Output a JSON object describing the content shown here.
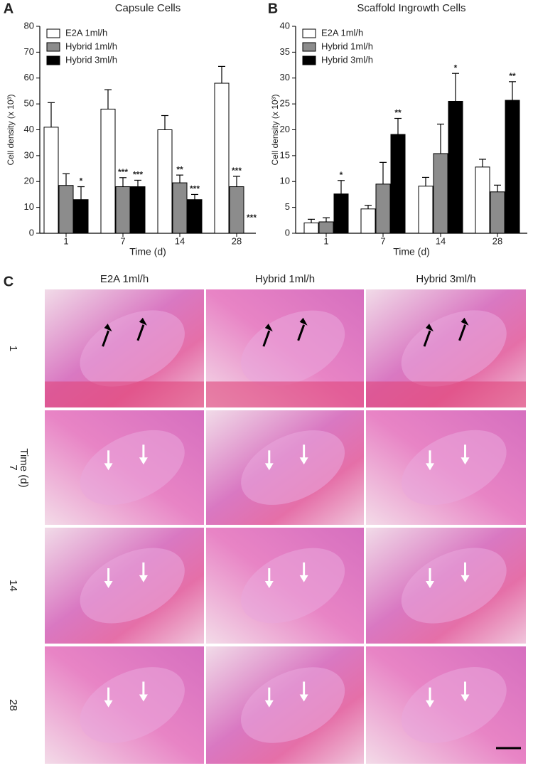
{
  "chart_data": [
    {
      "type": "bar",
      "panel": "A",
      "title": "Capsule Cells",
      "x_label": "Time (d)",
      "y_label": "Cell density (x 10³)",
      "categories": [
        "1",
        "7",
        "14",
        "28"
      ],
      "series": [
        {
          "name": "E2A 1ml/h",
          "color": "#ffffff",
          "values": [
            41,
            48,
            40,
            58
          ],
          "errors": [
            9.5,
            7.5,
            5.5,
            6.5
          ],
          "annotations": [
            null,
            null,
            null,
            null
          ]
        },
        {
          "name": "Hybrid 1ml/h",
          "color": "#8c8c8c",
          "values": [
            18.5,
            18,
            19.5,
            18
          ],
          "errors": [
            4.5,
            3.5,
            3,
            4
          ],
          "annotations": [
            null,
            "***",
            "**",
            "***"
          ]
        },
        {
          "name": "Hybrid 3ml/h",
          "color": "#000000",
          "values": [
            13,
            18,
            13,
            0
          ],
          "errors": [
            5,
            2.5,
            2,
            null
          ],
          "annotations": [
            "*",
            "***",
            "***",
            "***"
          ]
        }
      ],
      "ylim": [
        0,
        80
      ],
      "yticks": [
        0,
        10,
        20,
        30,
        40,
        50,
        60,
        70,
        80
      ],
      "legend": "top-left"
    },
    {
      "type": "bar",
      "panel": "B",
      "title": "Scaffold Ingrowth Cells",
      "x_label": "Time (d)",
      "y_label": "Cell density (x 10³)",
      "categories": [
        "1",
        "7",
        "14",
        "28"
      ],
      "series": [
        {
          "name": "E2A 1ml/h",
          "color": "#ffffff",
          "values": [
            2,
            4.7,
            9.1,
            12.8
          ],
          "errors": [
            0.7,
            0.7,
            1.7,
            1.5
          ],
          "annotations": [
            null,
            null,
            null,
            null
          ]
        },
        {
          "name": "Hybrid 1ml/h",
          "color": "#8c8c8c",
          "values": [
            2.2,
            9.5,
            15.4,
            8
          ],
          "errors": [
            0.8,
            4.2,
            5.7,
            1.3
          ],
          "annotations": [
            null,
            null,
            null,
            null
          ]
        },
        {
          "name": "Hybrid 3ml/h",
          "color": "#000000",
          "values": [
            7.6,
            19.1,
            25.5,
            25.7
          ],
          "errors": [
            2.6,
            3.1,
            5.4,
            3.6
          ],
          "annotations": [
            "*",
            "**",
            "*",
            "**"
          ]
        }
      ],
      "ylim": [
        0,
        40
      ],
      "yticks": [
        0,
        5,
        10,
        15,
        20,
        25,
        30,
        35,
        40
      ],
      "legend": "top-left"
    }
  ],
  "panel_c": {
    "panel": "C",
    "columns": [
      "E2A 1ml/h",
      "Hybrid 1ml/h",
      "Hybrid 3ml/h"
    ],
    "rows": [
      "1",
      "7",
      "14",
      "28"
    ],
    "row_axis_label": "Time (d)"
  }
}
